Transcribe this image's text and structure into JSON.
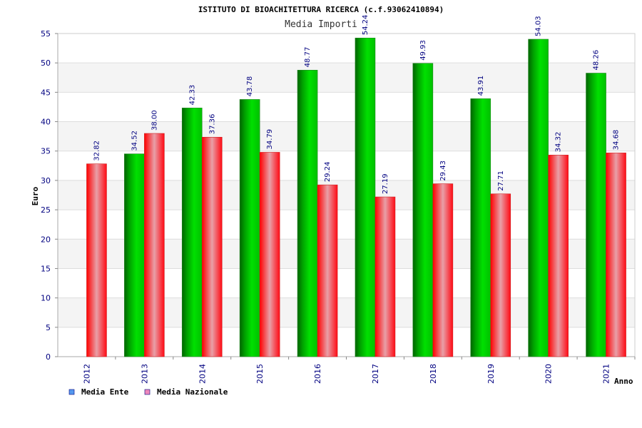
{
  "chart_data": {
    "type": "bar",
    "title": "ISTITUTO DI BIOACHITETTURA RICERCA (c.f.93062410894)",
    "subtitle": "Media Importi",
    "xlabel": "Anno",
    "ylabel": "Euro",
    "ylim": [
      0,
      55
    ],
    "yticks": [
      0,
      5,
      10,
      15,
      20,
      25,
      30,
      35,
      40,
      45,
      50,
      55
    ],
    "categories": [
      "2012",
      "2013",
      "2014",
      "2015",
      "2016",
      "2017",
      "2018",
      "2019",
      "2020",
      "2021"
    ],
    "series": [
      {
        "name": "Media Ente",
        "values": [
          null,
          34.52,
          42.33,
          43.78,
          48.77,
          54.24,
          49.93,
          43.91,
          54.03,
          48.26
        ],
        "labels": [
          "",
          "34.52",
          "42.33",
          "43.78",
          "48.77",
          "54.24",
          "49.93",
          "43.91",
          "54.03",
          "48.26"
        ]
      },
      {
        "name": "Media Nazionale",
        "values": [
          32.82,
          38.0,
          37.36,
          34.79,
          29.24,
          27.19,
          29.43,
          27.71,
          34.32,
          34.68
        ],
        "labels": [
          "32.82",
          "38.00",
          "37.36",
          "34.79",
          "29.24",
          "27.19",
          "29.43",
          "27.71",
          "34.32",
          "34.68"
        ]
      }
    ],
    "grid": true,
    "legend": "bottom-left",
    "colors": {
      "bar_ente": "#00b400",
      "bar_nazionale": "#ee1111",
      "legend_ente": "#5599ee",
      "legend_nazionale": "#ee88bb",
      "band": "#f4f4f4",
      "tick_text": "#000080"
    }
  }
}
